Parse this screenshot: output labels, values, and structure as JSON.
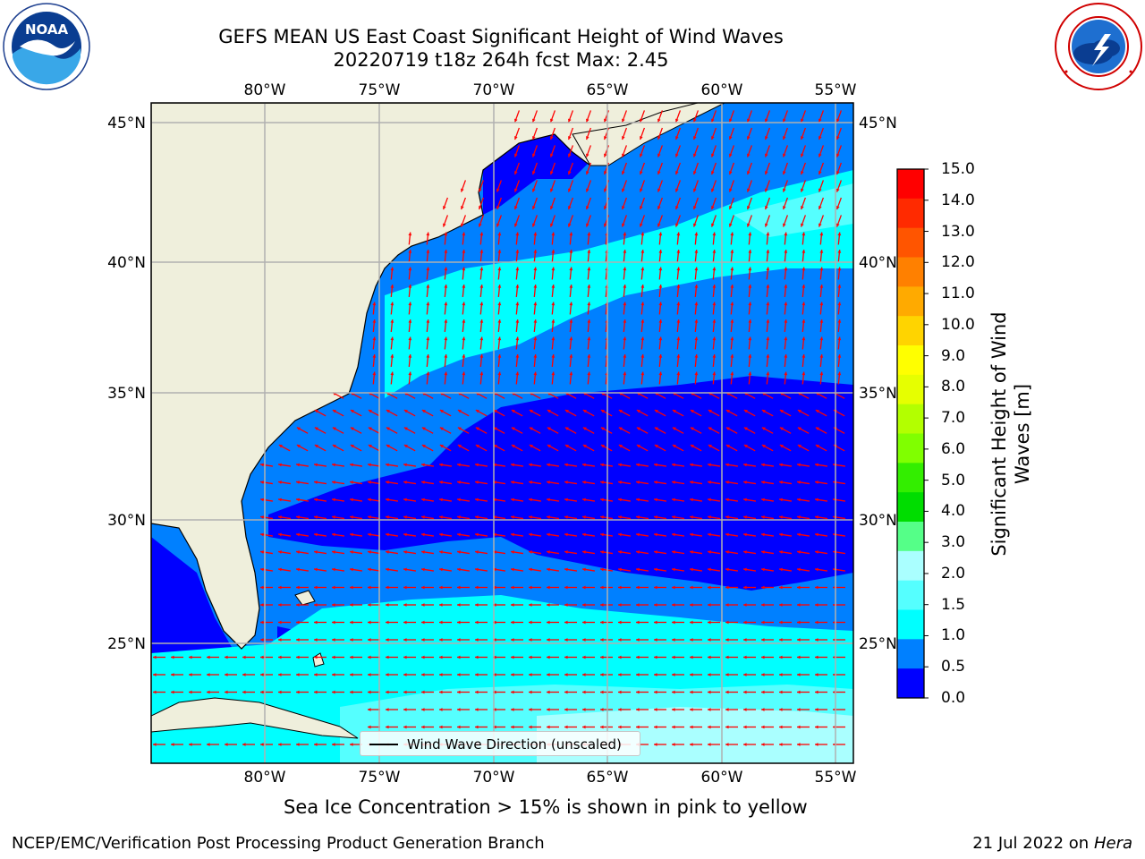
{
  "title_line1": "GEFS MEAN US East Coast Significant Height of Wind Waves",
  "title_line2": "20220719 t18z 264h fcst   Max: 2.45",
  "lon_labels": [
    "80°W",
    "75°W",
    "70°W",
    "65°W",
    "60°W",
    "55°W"
  ],
  "lat_labels": [
    "45°N",
    "40°N",
    "35°N",
    "30°N",
    "25°N"
  ],
  "legend_text": "Wind Wave Direction (unscaled)",
  "colorbar": {
    "label_line1": "Significant Height of Wind",
    "label_line2": "Waves [m]",
    "ticks": [
      "15.0",
      "14.0",
      "13.0",
      "12.0",
      "11.0",
      "10.0",
      "9.0",
      "8.0",
      "7.0",
      "6.0",
      "5.0",
      "4.0",
      "3.0",
      "2.0",
      "1.5",
      "1.0",
      "0.5",
      "0.0"
    ],
    "colors": [
      "#ff0000",
      "#ff2a00",
      "#ff5500",
      "#ff8000",
      "#ffaa00",
      "#ffd400",
      "#ffff00",
      "#e6ff00",
      "#b3ff00",
      "#80ff00",
      "#33ee00",
      "#00dd00",
      "#55ff88",
      "#aaffff",
      "#55ffff",
      "#00ffff",
      "#0080ff",
      "#0000ff"
    ]
  },
  "seaice_note": "Sea Ice Concentration > 15% is shown in pink to yellow",
  "footer_left": "NCEP/EMC/Verification Post Processing Product Generation Branch",
  "footer_right_date": "21 Jul 2022 on ",
  "footer_right_host": "Hera",
  "logo_noaa_text": "NOAA",
  "colors": {
    "land": "#efefdc",
    "wave_0_05": "#0000ff",
    "wave_05_1": "#0080ff",
    "wave_1_15": "#00ffff",
    "wave_15_2": "#55ffff",
    "wave_2_3": "#aaffff",
    "arrow": "#ff0000",
    "grid": "#b0b0b0"
  }
}
